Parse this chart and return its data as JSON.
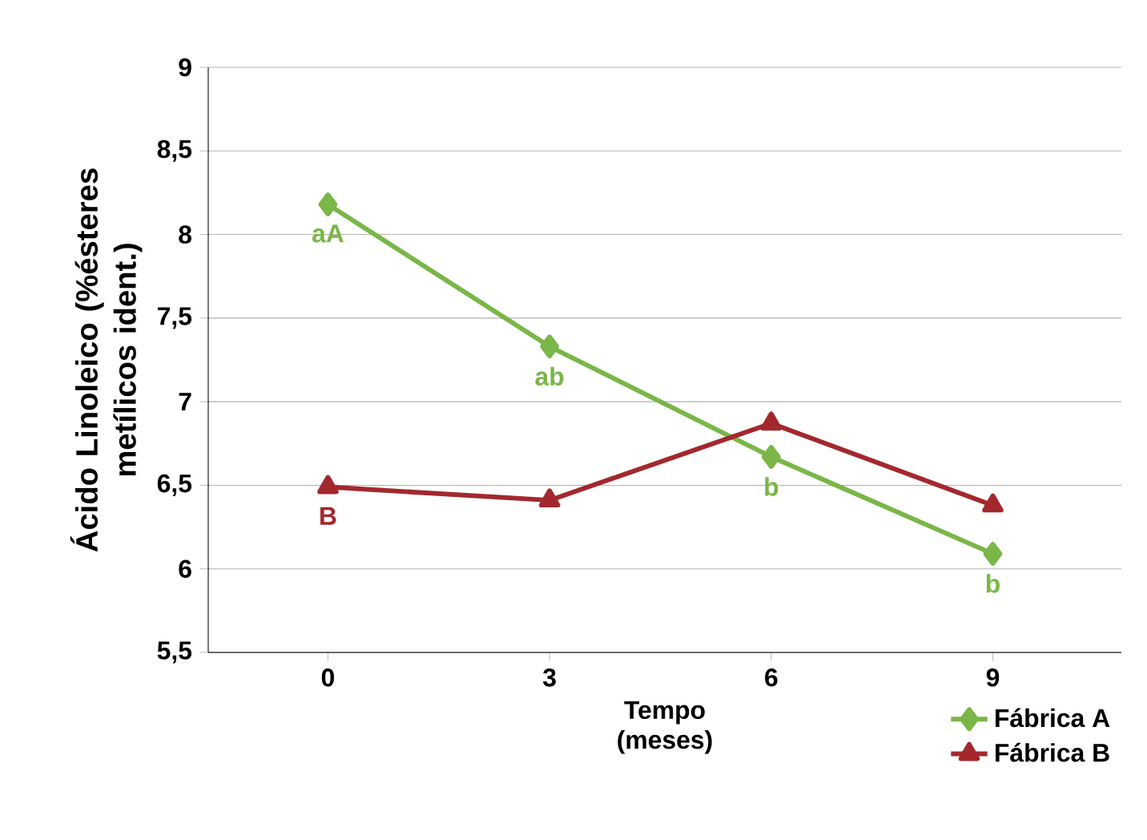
{
  "chart_data": {
    "type": "line",
    "xlabel": "Tempo (meses)",
    "ylabel": "Ácido Linoleico (%ésteres metílicos ident.)",
    "categories": [
      "0",
      "3",
      "6",
      "9"
    ],
    "series": [
      {
        "name": "Fábrica A",
        "color": "#7ab648",
        "values": [
          8.18,
          7.33,
          6.67,
          6.09
        ],
        "marker": "diamond"
      },
      {
        "name": "Fábrica B",
        "color": "#a3282e",
        "values": [
          6.49,
          6.41,
          6.87,
          6.38
        ],
        "marker": "triangle"
      }
    ],
    "ylim": [
      5.5,
      9
    ],
    "yticks": [
      {
        "value": 5.5,
        "label": "5,5"
      },
      6,
      {
        "value": 6.5,
        "label": "6,5"
      },
      7,
      {
        "value": 7.5,
        "label": "7,5"
      },
      8,
      {
        "value": 8.5,
        "label": "8,5"
      },
      9
    ],
    "grid": "y",
    "legend": "bottom right",
    "line_style": "solid",
    "annotations": [
      {
        "text": "aA",
        "x": "0",
        "y": 8.18
      },
      {
        "text": "ab",
        "x": "3",
        "y": 7.33
      },
      {
        "text": "b",
        "x": "6",
        "y": 6.67
      },
      {
        "text": "b",
        "x": "9",
        "y": 6.09
      },
      {
        "text": "B",
        "x": "0",
        "y": 6.49
      }
    ]
  }
}
